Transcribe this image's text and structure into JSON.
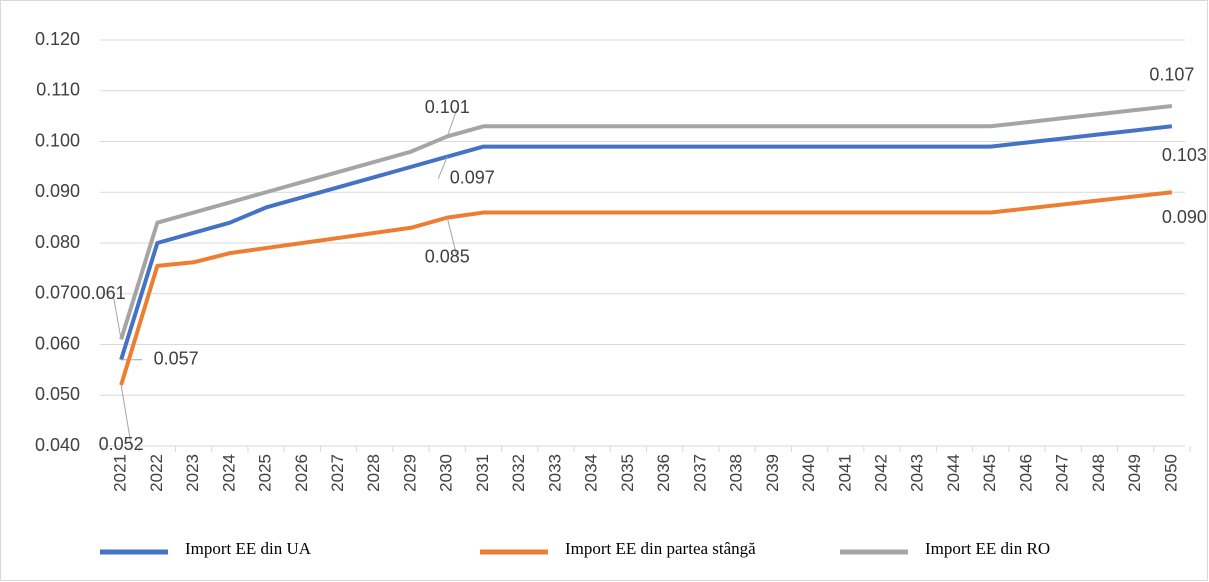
{
  "chart_data": {
    "type": "line",
    "categories": [
      "2021",
      "2022",
      "2023",
      "2024",
      "2025",
      "2026",
      "2027",
      "2028",
      "2029",
      "2030",
      "2031",
      "2032",
      "2033",
      "2034",
      "2035",
      "2036",
      "2037",
      "2038",
      "2039",
      "2040",
      "2041",
      "2042",
      "2043",
      "2044",
      "2045",
      "2046",
      "2047",
      "2048",
      "2049",
      "2050"
    ],
    "series": [
      {
        "name": "Import EE din UA",
        "color": "#4472c4",
        "values": [
          0.057,
          0.08,
          0.082,
          0.084,
          0.087,
          0.089,
          0.091,
          0.093,
          0.095,
          0.097,
          0.099,
          0.099,
          0.099,
          0.099,
          0.099,
          0.099,
          0.099,
          0.099,
          0.099,
          0.099,
          0.099,
          0.099,
          0.099,
          0.099,
          0.099,
          0.0998,
          0.1006,
          0.1014,
          0.1022,
          0.103
        ],
        "value_labels": [
          "0.057",
          null,
          null,
          null,
          null,
          null,
          null,
          null,
          null,
          "0.097",
          null,
          null,
          null,
          null,
          null,
          null,
          null,
          null,
          null,
          null,
          null,
          null,
          null,
          null,
          null,
          null,
          null,
          null,
          null,
          "0.103"
        ]
      },
      {
        "name": "Import EE din partea stângă",
        "color": "#ed7d31",
        "values": [
          0.052,
          0.0755,
          0.0762,
          0.078,
          0.079,
          0.08,
          0.081,
          0.082,
          0.083,
          0.085,
          0.086,
          0.086,
          0.086,
          0.086,
          0.086,
          0.086,
          0.086,
          0.086,
          0.086,
          0.086,
          0.086,
          0.086,
          0.086,
          0.086,
          0.086,
          0.0868,
          0.0876,
          0.0884,
          0.0892,
          0.09
        ],
        "value_labels": [
          "0.052",
          null,
          null,
          null,
          null,
          null,
          null,
          null,
          null,
          "0.085",
          null,
          null,
          null,
          null,
          null,
          null,
          null,
          null,
          null,
          null,
          null,
          null,
          null,
          null,
          null,
          null,
          null,
          null,
          null,
          "0.090"
        ]
      },
      {
        "name": "Import EE din RO",
        "color": "#a5a5a5",
        "values": [
          0.061,
          0.084,
          0.086,
          0.088,
          0.09,
          0.092,
          0.094,
          0.096,
          0.098,
          0.101,
          0.103,
          0.103,
          0.103,
          0.103,
          0.103,
          0.103,
          0.103,
          0.103,
          0.103,
          0.103,
          0.103,
          0.103,
          0.103,
          0.103,
          0.103,
          0.1038,
          0.1046,
          0.1054,
          0.1062,
          0.107
        ],
        "value_labels": [
          "0.061",
          null,
          null,
          null,
          null,
          null,
          null,
          null,
          null,
          "0.101",
          null,
          null,
          null,
          null,
          null,
          null,
          null,
          null,
          null,
          null,
          null,
          null,
          null,
          null,
          null,
          null,
          null,
          null,
          null,
          "0.107"
        ]
      }
    ],
    "ylim": [
      0.04,
      0.12
    ],
    "yticks": [
      {
        "value": 0.04,
        "label": "0.040"
      },
      {
        "value": 0.05,
        "label": "0.050"
      },
      {
        "value": 0.06,
        "label": "0.060"
      },
      {
        "value": 0.07,
        "label": "0.070"
      },
      {
        "value": 0.08,
        "label": "0.080"
      },
      {
        "value": 0.09,
        "label": "0.090"
      },
      {
        "value": 0.1,
        "label": "0.100"
      },
      {
        "value": 0.11,
        "label": "0.110"
      },
      {
        "value": 0.12,
        "label": "0.120"
      }
    ],
    "grid": true,
    "legend": "bottom"
  }
}
